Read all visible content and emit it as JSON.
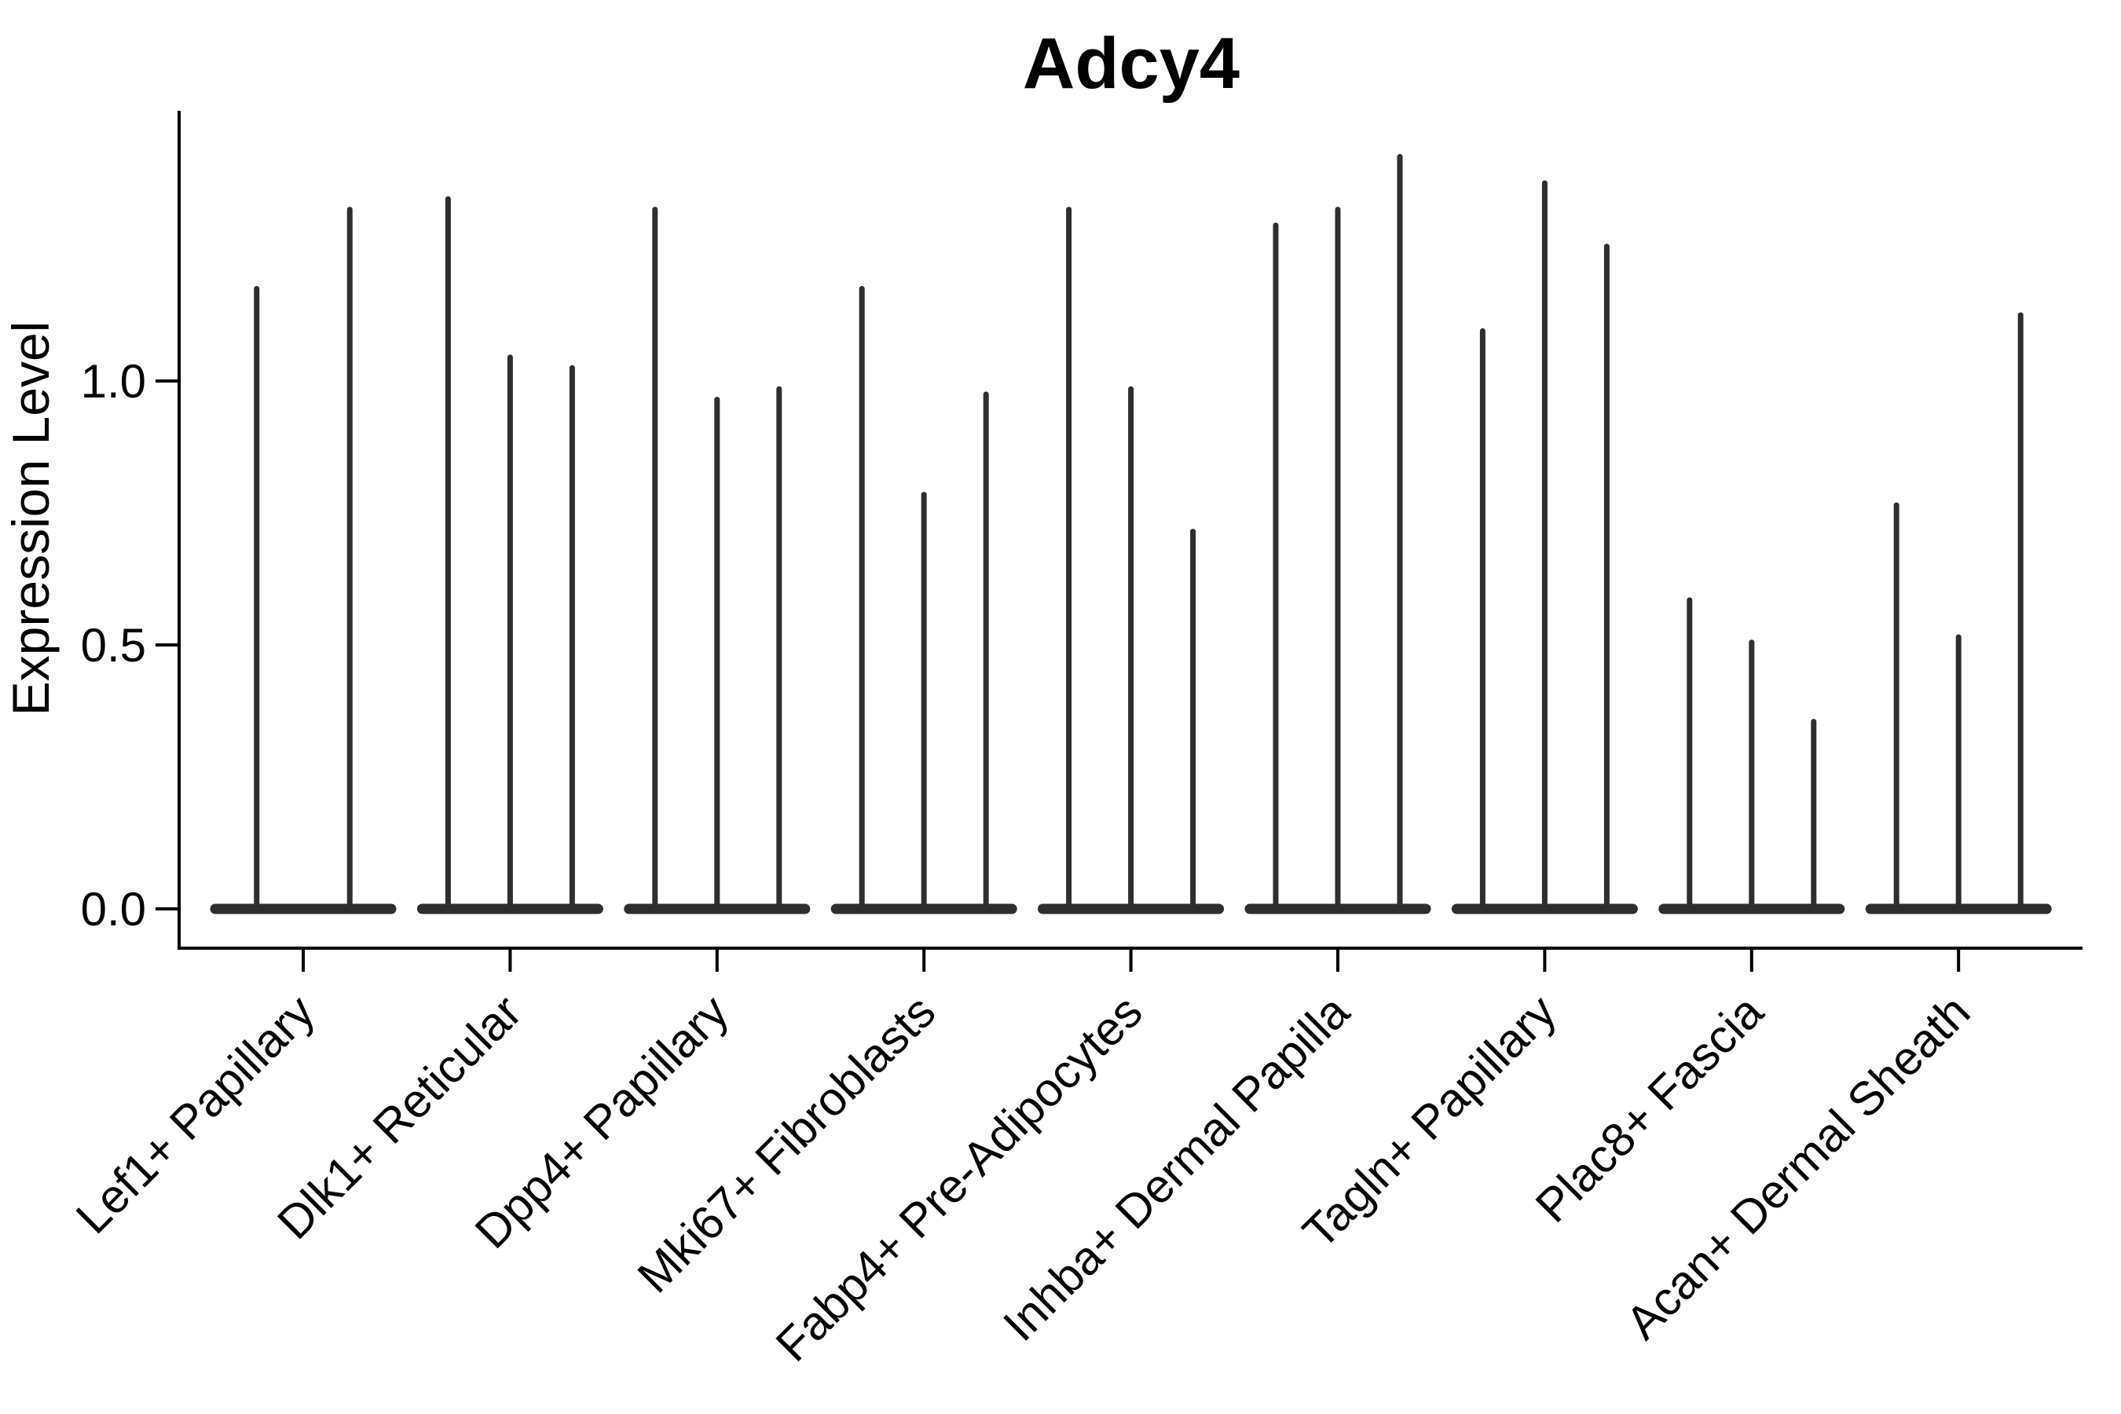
{
  "figure": {
    "background_color": "#ffffff"
  },
  "chart_data": {
    "type": "violin",
    "title": "Adcy4",
    "ylabel": "Expression Level",
    "xlabel": "",
    "grid": "off",
    "legend": "none",
    "ylim": [
      -0.07,
      1.51
    ],
    "ytick_values": [
      1.0,
      0.5,
      0.0
    ],
    "ytick_labels": [
      "1.0",
      "0.5",
      "0.0"
    ],
    "categories": [
      "Lef1+ Papillary",
      "Dlk1+ Reticular",
      "Dpp4+ Papillary",
      "Mki67+ Fibroblasts",
      "Fabp4+ Pre-Adipocytes",
      "Inhba+ Dermal Papilla",
      "Tagln+ Papillary",
      "Plac8+ Fascia",
      "Acan+ Dermal Sheath"
    ],
    "baseline_value": 0.0,
    "violins": [
      {
        "category": "Lef1+ Papillary",
        "spike_maxima": [
          1.18,
          1.33
        ]
      },
      {
        "category": "Dlk1+ Reticular",
        "spike_maxima": [
          1.35,
          1.05,
          1.03
        ]
      },
      {
        "category": "Dpp4+ Papillary",
        "spike_maxima": [
          1.33,
          0.97,
          0.99
        ]
      },
      {
        "category": "Mki67+ Fibroblasts",
        "spike_maxima": [
          1.18,
          0.79,
          0.98
        ]
      },
      {
        "category": "Fabp4+ Pre-Adipocytes",
        "spike_maxima": [
          1.33,
          0.99,
          0.72
        ]
      },
      {
        "category": "Inhba+ Dermal Papilla",
        "spike_maxima": [
          1.3,
          1.33,
          1.43
        ]
      },
      {
        "category": "Tagln+ Papillary",
        "spike_maxima": [
          1.1,
          1.38,
          1.26
        ]
      },
      {
        "category": "Plac8+ Fascia",
        "spike_maxima": [
          0.59,
          0.51,
          0.36
        ]
      },
      {
        "category": "Acan+ Dermal Sheath",
        "spike_maxima": [
          0.77,
          0.52,
          1.13
        ]
      }
    ],
    "colors": {
      "violin_fill": "#2e2e2e",
      "axis_color": "#000000",
      "text_color": "#000000"
    }
  }
}
